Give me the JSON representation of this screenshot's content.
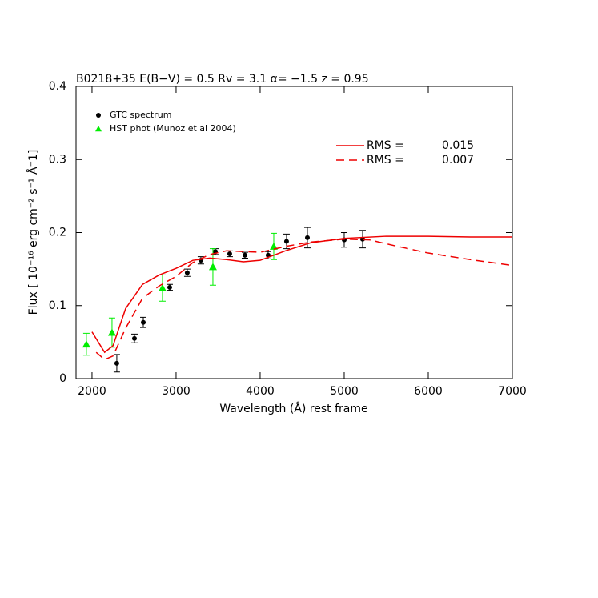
{
  "chart_data": {
    "type": "scatter",
    "title": "B0218+35 E(B−V) = 0.5  Rv = 3.1 α= −1.5 z = 0.95",
    "x_label": "Wavelength (Å) rest frame",
    "y_label": "Flux [ 10⁻¹⁶ erg cm⁻² s⁻¹ Å⁻1]",
    "xlim": [
      1810,
      7000
    ],
    "ylim": [
      0,
      0.4
    ],
    "xticks": [
      2000,
      3000,
      4000,
      5000,
      6000,
      7000
    ],
    "yticks": [
      0,
      0.1,
      0.2,
      0.3,
      0.4
    ],
    "series": [
      {
        "name": "GTC spectrum",
        "kind": "points",
        "marker": "circle",
        "color": "#000000",
        "x": [
          2295,
          2505,
          2610,
          2924,
          3133,
          3295,
          3467,
          3638,
          3819,
          4095,
          4314,
          4562,
          5000,
          5219
        ],
        "values": [
          0.021,
          0.055,
          0.077,
          0.125,
          0.145,
          0.162,
          0.174,
          0.171,
          0.169,
          0.169,
          0.188,
          0.193,
          0.19,
          0.191
        ],
        "errors": [
          0.012,
          0.006,
          0.007,
          0.004,
          0.005,
          0.005,
          0.004,
          0.004,
          0.004,
          0.005,
          0.01,
          0.014,
          0.01,
          0.012
        ]
      },
      {
        "name": "HST phot (Munoz et al 2004)",
        "kind": "points",
        "marker": "triangle",
        "color": "#00ee00",
        "x": [
          1933,
          2238,
          2838,
          3438,
          4162
        ],
        "values": [
          0.047,
          0.063,
          0.124,
          0.153,
          0.181
        ],
        "errors": [
          0.015,
          0.02,
          0.018,
          0.025,
          0.018
        ]
      },
      {
        "name": "RMS =",
        "rms": 0.015,
        "kind": "line",
        "dashed": false,
        "color": "#ee0000",
        "x": [
          2000,
          2150,
          2250,
          2400,
          2600,
          2800,
          3000,
          3200,
          3400,
          3600,
          3800,
          4000,
          4300,
          4600,
          5000,
          5500,
          6000,
          6500,
          7000
        ],
        "values": [
          0.064,
          0.036,
          0.045,
          0.096,
          0.129,
          0.142,
          0.151,
          0.162,
          0.165,
          0.163,
          0.16,
          0.162,
          0.175,
          0.186,
          0.192,
          0.195,
          0.195,
          0.194,
          0.194
        ]
      },
      {
        "name": "RMS =",
        "rms": 0.007,
        "kind": "line",
        "dashed": true,
        "color": "#ee0000",
        "x": [
          2050,
          2150,
          2250,
          2400,
          2600,
          2800,
          3000,
          3200,
          3400,
          3600,
          3800,
          4000,
          4300,
          4600,
          5000,
          5300,
          5600,
          6000,
          6500,
          7000
        ],
        "values": [
          0.036,
          0.026,
          0.031,
          0.069,
          0.11,
          0.127,
          0.14,
          0.159,
          0.17,
          0.175,
          0.174,
          0.173,
          0.181,
          0.187,
          0.191,
          0.19,
          0.182,
          0.172,
          0.163,
          0.155
        ]
      }
    ]
  }
}
